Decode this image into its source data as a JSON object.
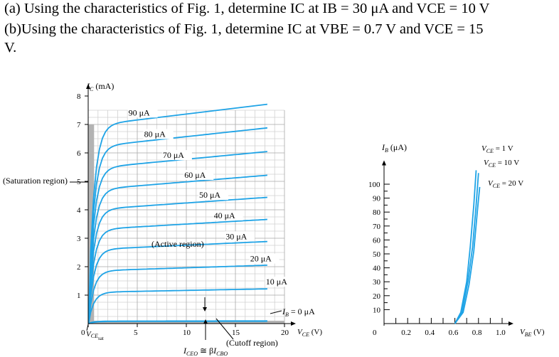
{
  "question": {
    "line1": "(a) Using the characteristics of Fig. 1, determine IC at IB = 30 μA and VCE = 10 V",
    "line2": "(b)Using the characteristics of Fig. 1, determine IC at VBE = 0.7 V and VCE = 15",
    "line3": "V."
  },
  "colors": {
    "curve": "#1ea3e6",
    "grid": "#a9a9a9",
    "grid_minor": "#d0d0d0",
    "saturation_band": "#b3b3b3",
    "cutoff_band": "#b3b3b3"
  },
  "chart_data": [
    {
      "type": "line",
      "title": "",
      "ylabel_main": "I",
      "ylabel_sub": "C",
      "ylabel_unit": " (mA)",
      "xlabel_main": "V",
      "xlabel_sub": "CE",
      "xlabel_unit": " (V)",
      "xlim": [
        0,
        20
      ],
      "ylim": [
        0,
        8
      ],
      "x_ticks": [
        "0",
        "5",
        "10",
        "15",
        "20"
      ],
      "y_ticks": [
        "1",
        "2",
        "3",
        "4",
        "5",
        "6",
        "7",
        "8"
      ],
      "series": [
        {
          "name": "90 μA",
          "sat_current": 6.95
        },
        {
          "name": "80 μA",
          "sat_current": 6.2
        },
        {
          "name": "70 μA",
          "sat_current": 5.45
        },
        {
          "name": "60 μA",
          "sat_current": 4.7
        },
        {
          "name": "50 μA",
          "sat_current": 4.0
        },
        {
          "name": "40 μA",
          "sat_current": 3.3
        },
        {
          "name": "30 μA",
          "sat_current": 2.6
        },
        {
          "name": "20 μA",
          "sat_current": 1.85
        },
        {
          "name": "10 μA",
          "sat_current": 1.1
        },
        {
          "name": "I_B = 0 μA",
          "sat_current": 0.08
        }
      ],
      "annotations": {
        "saturation": "(Saturation region)",
        "active": "(Active region)",
        "cutoff": "(Cutoff region)",
        "vce_sat_main": "V",
        "vce_sat_sub": "CE",
        "vce_sat_subsub": "sat",
        "iceo": "I",
        "iceo_sub": "CEO",
        "iceo_approx": " ≅ β",
        "icbo": "I",
        "icbo_sub": "CBO",
        "ib0_label_main": "I",
        "ib0_label_sub": "B",
        "ib0_label_rest": " = 0 μA"
      }
    },
    {
      "type": "line",
      "title": "",
      "ylabel_main": "I",
      "ylabel_sub": "B",
      "ylabel_unit": " (μA)",
      "xlabel_main": "V",
      "xlabel_sub": "BE",
      "xlabel_unit": " (V)",
      "xlim": [
        0,
        1.0
      ],
      "ylim": [
        0,
        100
      ],
      "x_ticks": [
        "0",
        "0.2",
        "0.4",
        "0.6",
        "0.8",
        "1.0"
      ],
      "y_ticks": [
        "10",
        "20",
        "30",
        "40",
        "50",
        "60",
        "70",
        "80",
        "90",
        "100"
      ],
      "series": [
        {
          "name_main": "V",
          "name_sub": "CE",
          "name_rest": " = 1 V",
          "x": [
            0.6,
            0.65,
            0.7,
            0.73,
            0.76,
            0.78
          ],
          "y": [
            0,
            8,
            30,
            55,
            85,
            110
          ]
        },
        {
          "name_main": "V",
          "name_sub": "CE",
          "name_rest": " = 10 V",
          "x": [
            0.6,
            0.66,
            0.71,
            0.75,
            0.78,
            0.8
          ],
          "y": [
            0,
            8,
            30,
            55,
            85,
            108
          ]
        },
        {
          "name_main": "V",
          "name_sub": "CE",
          "name_rest": " = 20 V",
          "x": [
            0.6,
            0.67,
            0.72,
            0.76,
            0.79,
            0.81
          ],
          "y": [
            0,
            8,
            28,
            52,
            80,
            98
          ]
        }
      ]
    }
  ]
}
